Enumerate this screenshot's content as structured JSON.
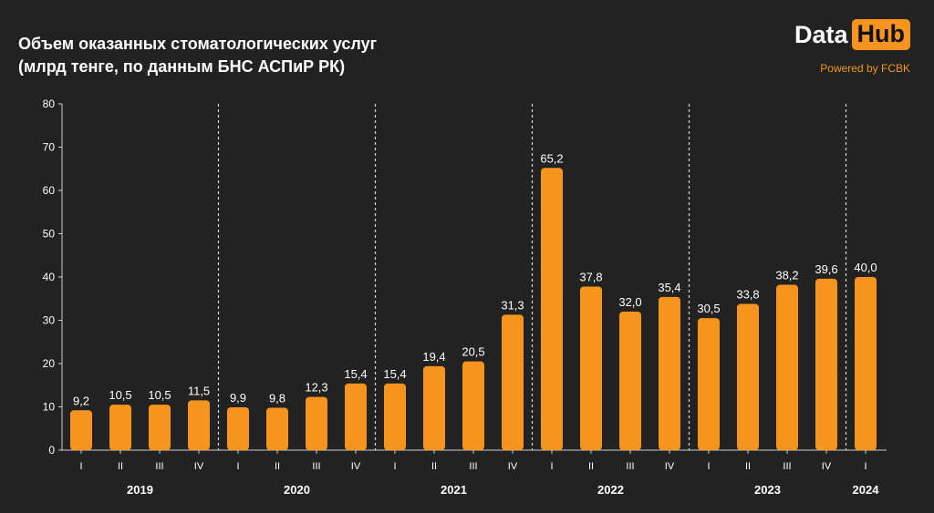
{
  "header": {
    "title_line1": "Объем оказанных стоматологических услуг",
    "title_line2": "(млрд тенге, по данным БНС АСПиР РК)"
  },
  "logo": {
    "data_text": "Data",
    "hub_text": "Hub",
    "powered_text": "Powered by FCBK"
  },
  "colors": {
    "background": "#222222",
    "bar": "#f7941d",
    "text": "#ffffff",
    "accent": "#f7941d"
  },
  "chart_data": {
    "type": "bar",
    "title": "Объем оказанных стоматологических услуг (млрд тенге, по данным БНС АСПиР РК)",
    "xlabel": "",
    "ylabel": "",
    "ylim": [
      0,
      80
    ],
    "yticks": [
      0,
      10,
      20,
      30,
      40,
      50,
      60,
      70,
      80
    ],
    "grid": false,
    "categories": [
      "I",
      "II",
      "III",
      "IV",
      "I",
      "II",
      "III",
      "IV",
      "I",
      "II",
      "III",
      "IV",
      "I",
      "II",
      "III",
      "IV",
      "I",
      "II",
      "III",
      "IV",
      "I"
    ],
    "years": [
      "2019",
      "2019",
      "2019",
      "2019",
      "2020",
      "2020",
      "2020",
      "2020",
      "2021",
      "2021",
      "2021",
      "2021",
      "2022",
      "2022",
      "2022",
      "2022",
      "2023",
      "2023",
      "2023",
      "2023",
      "2024"
    ],
    "year_labels": [
      "2019",
      "2020",
      "2021",
      "2022",
      "2023",
      "2024"
    ],
    "values": [
      9.2,
      10.5,
      10.5,
      11.5,
      9.9,
      9.8,
      12.3,
      15.4,
      15.4,
      19.4,
      20.5,
      31.3,
      65.2,
      37.8,
      32.0,
      35.4,
      30.5,
      33.8,
      38.2,
      39.6,
      40.0
    ],
    "value_labels": [
      "9,2",
      "10,5",
      "10,5",
      "11,5",
      "9,9",
      "9,8",
      "12,3",
      "15,4",
      "15,4",
      "19,4",
      "20,5",
      "31,3",
      "65,2",
      "37,8",
      "32,0",
      "35,4",
      "30,5",
      "33,8",
      "38,2",
      "39,6",
      "40,0"
    ]
  }
}
